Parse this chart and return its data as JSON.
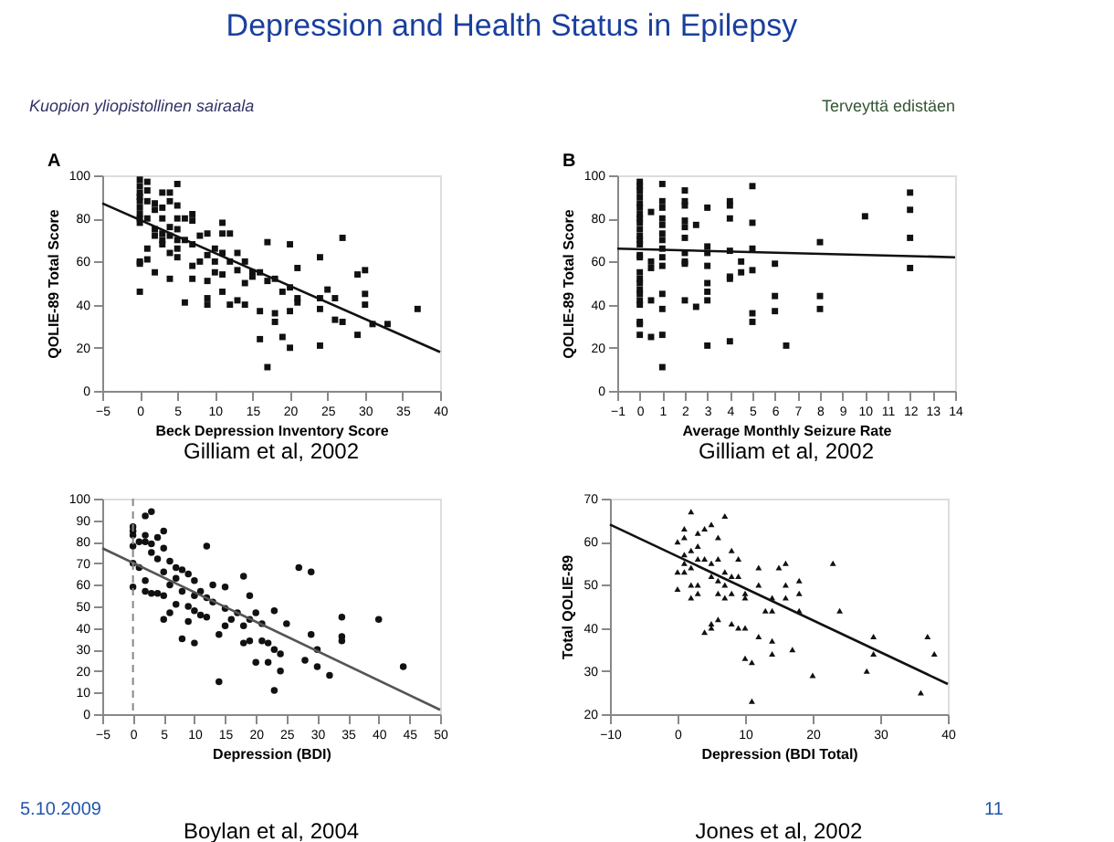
{
  "chart_data": [
    {
      "type": "scatter",
      "title": "Depression and Health Status in Epilepsy",
      "xlabel": "Beck Depression Inventory Score",
      "ylabel": "QOLIE-89 Total Score",
      "xlim": [
        -5,
        40
      ],
      "ylim": [
        0,
        100
      ],
      "xticks": [
        -5,
        0,
        5,
        10,
        15,
        20,
        25,
        30,
        35,
        40
      ],
      "yticks": [
        0,
        20,
        40,
        60,
        80,
        100
      ],
      "grid": false,
      "annotations": [
        "Gilliam et al, 2002",
        "A",
        "Kuopion yliopistollinen sairaala"
      ],
      "series": [
        {
          "color": "#111111",
          "marker": "square",
          "x": [
            0,
            0,
            0,
            0,
            0,
            0,
            0,
            0,
            0,
            0,
            0,
            0,
            1,
            1,
            1,
            1,
            1,
            1,
            2,
            2,
            2,
            2,
            2,
            3,
            3,
            3,
            3,
            3,
            3,
            4,
            4,
            4,
            4,
            4,
            4,
            5,
            5,
            5,
            5,
            5,
            5,
            5,
            6,
            6,
            6,
            7,
            7,
            7,
            7,
            7,
            8,
            8,
            9,
            9,
            9,
            9,
            9,
            10,
            10,
            10,
            11,
            11,
            11,
            11,
            11,
            12,
            12,
            12,
            13,
            13,
            13,
            14,
            14,
            14,
            15,
            15,
            16,
            16,
            16,
            17,
            17,
            17,
            18,
            18,
            18,
            19,
            19,
            20,
            20,
            20,
            20,
            21,
            21,
            21,
            24,
            24,
            24,
            24,
            25,
            26,
            26,
            27,
            27,
            29,
            29,
            30,
            30,
            30,
            31,
            33,
            37
          ],
          "values": [
            98,
            95,
            92,
            90,
            88,
            85,
            82,
            80,
            78,
            60,
            59,
            46,
            97,
            93,
            88,
            80,
            66,
            61,
            87,
            84,
            75,
            72,
            55,
            92,
            85,
            80,
            73,
            70,
            68,
            92,
            88,
            76,
            72,
            64,
            52,
            96,
            86,
            80,
            75,
            70,
            66,
            62,
            80,
            70,
            41,
            82,
            79,
            68,
            58,
            52,
            72,
            60,
            73,
            63,
            51,
            43,
            40,
            66,
            60,
            55,
            78,
            73,
            64,
            54,
            46,
            73,
            60,
            40,
            64,
            56,
            42,
            60,
            50,
            40,
            55,
            53,
            55,
            37,
            24,
            69,
            51,
            11,
            52,
            36,
            32,
            46,
            25,
            68,
            48,
            37,
            20,
            57,
            43,
            41,
            62,
            43,
            38,
            21,
            47,
            43,
            33,
            71,
            32,
            54,
            26,
            56,
            45,
            40,
            31,
            31,
            38
          ]
        },
        {
          "type": "line",
          "color": "#111111",
          "line_style": "solid",
          "x": [
            -5,
            40
          ],
          "values": [
            87,
            18
          ]
        }
      ]
    },
    {
      "type": "scatter",
      "xlabel": "Average Monthly Seizure Rate",
      "ylabel": "QOLIE-89 Total Score",
      "xlim": [
        -1,
        14
      ],
      "ylim": [
        0,
        100
      ],
      "xticks": [
        -1,
        0,
        1,
        2,
        3,
        4,
        5,
        6,
        7,
        8,
        9,
        10,
        11,
        12,
        13,
        14
      ],
      "yticks": [
        0,
        20,
        40,
        60,
        80,
        100
      ],
      "grid": false,
      "annotations": [
        "Gilliam et al, 2002",
        "B",
        "Terveyttä edistäen"
      ],
      "series": [
        {
          "color": "#111111",
          "marker": "square",
          "x": [
            0,
            0,
            0,
            0,
            0,
            0,
            0,
            0,
            0,
            0,
            0,
            0,
            0,
            0,
            0,
            0,
            0,
            0,
            0,
            0,
            0,
            0,
            0,
            0,
            0,
            0.5,
            0.5,
            0.5,
            0.5,
            0.5,
            1,
            1,
            1,
            1,
            1,
            1,
            1,
            1,
            1,
            1,
            1,
            1,
            1,
            1,
            2,
            2,
            2,
            2,
            2,
            2,
            2,
            2,
            2,
            2,
            2.5,
            2.5,
            3,
            3,
            3,
            3,
            3,
            3,
            3,
            3,
            4,
            4,
            4,
            4,
            4,
            4,
            4,
            4.5,
            4.5,
            5,
            5,
            5,
            5,
            5,
            5,
            6,
            6,
            6,
            6.5,
            8,
            8,
            8,
            10,
            12,
            12,
            12,
            12
          ],
          "values": [
            97,
            95,
            93,
            90,
            87,
            85,
            82,
            80,
            78,
            75,
            72,
            70,
            68,
            63,
            62,
            55,
            52,
            50,
            47,
            45,
            42,
            40,
            32,
            31,
            26,
            83,
            60,
            57,
            42,
            25,
            96,
            88,
            85,
            80,
            77,
            73,
            70,
            66,
            62,
            58,
            45,
            38,
            26,
            11,
            93,
            88,
            86,
            79,
            76,
            71,
            64,
            60,
            59,
            42,
            77,
            39,
            85,
            67,
            64,
            58,
            50,
            46,
            42,
            21,
            88,
            86,
            80,
            65,
            53,
            52,
            23,
            60,
            55,
            95,
            78,
            66,
            56,
            36,
            32,
            59,
            44,
            37,
            21,
            69,
            44,
            38,
            81,
            92,
            84,
            71,
            57
          ]
        },
        {
          "type": "line",
          "color": "#111111",
          "line_style": "solid",
          "x": [
            -1,
            14
          ],
          "values": [
            66,
            62
          ]
        }
      ]
    },
    {
      "type": "scatter",
      "xlabel": "Depression (BDI)",
      "xlim": [
        -5,
        50
      ],
      "ylim": [
        0,
        100
      ],
      "xticks": [
        -5,
        0,
        5,
        10,
        15,
        20,
        25,
        30,
        35,
        40,
        45,
        50
      ],
      "yticks": [
        0,
        10,
        20,
        30,
        40,
        50,
        60,
        70,
        80,
        90,
        100
      ],
      "grid": false,
      "annotations": [
        "Boylan et al, 2004",
        "5.10.2009"
      ],
      "ref_lines": [
        {
          "axis": "x",
          "value": 0,
          "color": "#888888",
          "line_style": "dashed"
        }
      ],
      "series": [
        {
          "color": "#111111",
          "marker": "circle",
          "x": [
            0,
            0,
            0,
            0,
            0,
            0,
            1,
            1,
            2,
            2,
            2,
            2,
            2,
            3,
            3,
            3,
            3,
            4,
            4,
            4,
            5,
            5,
            5,
            5,
            5,
            6,
            6,
            6,
            7,
            7,
            7,
            8,
            8,
            8,
            9,
            9,
            9,
            10,
            10,
            10,
            10,
            11,
            11,
            12,
            12,
            12,
            13,
            13,
            14,
            14,
            15,
            15,
            15,
            16,
            17,
            18,
            18,
            18,
            19,
            19,
            19,
            20,
            20,
            21,
            21,
            22,
            22,
            23,
            23,
            23,
            24,
            24,
            25,
            27,
            28,
            29,
            29,
            30,
            30,
            32,
            34,
            34,
            34,
            40,
            44
          ],
          "values": [
            87,
            85,
            83,
            78,
            70,
            59,
            80,
            68,
            92,
            83,
            80,
            62,
            57,
            94,
            79,
            75,
            56,
            82,
            72,
            56,
            85,
            77,
            66,
            44,
            55,
            71,
            60,
            47,
            68,
            63,
            51,
            67,
            57,
            35,
            65,
            50,
            43,
            62,
            55,
            48,
            33,
            57,
            46,
            78,
            54,
            45,
            60,
            52,
            37,
            15,
            59,
            49,
            41,
            44,
            47,
            64,
            41,
            33,
            55,
            44,
            34,
            24,
            47,
            42,
            34,
            24,
            33,
            48,
            30,
            11,
            20,
            28,
            42,
            68,
            25,
            66,
            37,
            30,
            22,
            18,
            45,
            36,
            34,
            44,
            22
          ]
        },
        {
          "type": "line",
          "color": "#555555",
          "line_style": "solid",
          "x": [
            -5,
            50
          ],
          "values": [
            77,
            2
          ]
        }
      ]
    },
    {
      "type": "scatter",
      "xlabel": "Depression (BDI Total)",
      "ylabel": "Total QOLIE-89",
      "xlim": [
        -10,
        40
      ],
      "ylim": [
        20,
        70
      ],
      "xticks": [
        -10,
        0,
        10,
        20,
        30,
        40
      ],
      "yticks": [
        20,
        30,
        40,
        50,
        60,
        70
      ],
      "grid": false,
      "annotations": [
        "Jones et al, 2002",
        "11"
      ],
      "series": [
        {
          "color": "#111111",
          "marker": "triangle",
          "x": [
            0,
            0,
            0,
            1,
            1,
            1,
            1,
            1,
            2,
            2,
            2,
            2,
            2,
            3,
            3,
            3,
            3,
            3,
            4,
            4,
            4,
            5,
            5,
            5,
            5,
            5,
            6,
            6,
            6,
            6,
            6,
            7,
            7,
            7,
            7,
            8,
            8,
            8,
            8,
            9,
            9,
            9,
            10,
            10,
            10,
            10,
            11,
            11,
            12,
            12,
            12,
            13,
            14,
            14,
            14,
            14,
            15,
            16,
            16,
            16,
            17,
            18,
            18,
            18,
            20,
            23,
            24,
            28,
            29,
            29,
            36,
            37,
            38
          ],
          "values": [
            60,
            53,
            49,
            63,
            61,
            57,
            53,
            55,
            67,
            58,
            54,
            47,
            50,
            62,
            59,
            56,
            50,
            48,
            63,
            56,
            39,
            64,
            55,
            52,
            41,
            40,
            61,
            56,
            51,
            48,
            42,
            66,
            53,
            50,
            47,
            58,
            52,
            48,
            41,
            56,
            52,
            40,
            48,
            47,
            40,
            33,
            32,
            23,
            54,
            50,
            38,
            44,
            47,
            44,
            37,
            34,
            54,
            55,
            50,
            47,
            35,
            51,
            48,
            44,
            29,
            55,
            44,
            30,
            38,
            34,
            25,
            38,
            34
          ]
        },
        {
          "type": "line",
          "color": "#111111",
          "line_style": "solid",
          "x": [
            -10,
            40
          ],
          "values": [
            64,
            27
          ]
        }
      ]
    }
  ]
}
